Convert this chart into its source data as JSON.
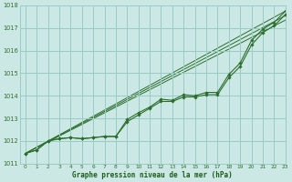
{
  "bg_color": "#cce8e4",
  "grid_color": "#99ccc6",
  "line_color": "#2d6e2d",
  "xlabel": "Graphe pression niveau de la mer (hPa)",
  "xlabel_color": "#1a5c1a",
  "xlim": [
    -0.5,
    23
  ],
  "ylim": [
    1011,
    1018
  ],
  "yticks": [
    1011,
    1012,
    1013,
    1014,
    1015,
    1016,
    1017,
    1018
  ],
  "xticks": [
    0,
    1,
    2,
    3,
    4,
    5,
    6,
    7,
    8,
    9,
    10,
    11,
    12,
    13,
    14,
    15,
    16,
    17,
    18,
    19,
    20,
    21,
    22,
    23
  ],
  "line1": [
    1011.45,
    1011.6,
    1012.0,
    1012.1,
    1012.15,
    1012.1,
    1012.15,
    1012.2,
    1012.2,
    1012.95,
    1013.25,
    1013.5,
    1013.85,
    1013.8,
    1014.05,
    1014.0,
    1014.15,
    1014.15,
    1014.95,
    1015.45,
    1016.45,
    1016.95,
    1017.25,
    1017.75
  ],
  "line2": [
    1011.45,
    1011.6,
    1012.0,
    1012.1,
    1012.15,
    1012.1,
    1012.15,
    1012.2,
    1012.2,
    1012.85,
    1013.15,
    1013.45,
    1013.75,
    1013.75,
    1013.95,
    1013.95,
    1014.05,
    1014.05,
    1014.8,
    1015.3,
    1016.25,
    1016.8,
    1017.1,
    1017.6
  ],
  "line3_straight": [
    1011.45,
    1017.75
  ],
  "line4_straight": [
    1011.45,
    1017.55
  ],
  "line5_straight": [
    1011.45,
    1017.35
  ]
}
